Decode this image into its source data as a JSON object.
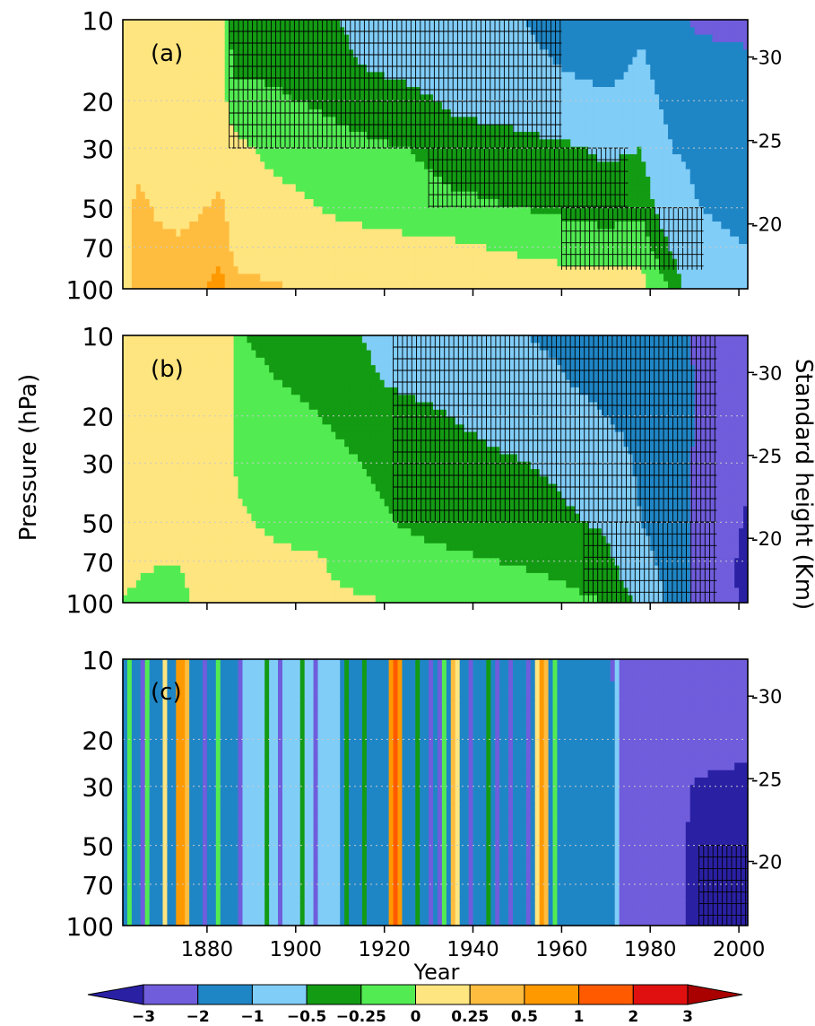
{
  "figure": {
    "xlabel": "Year",
    "ylabel_left": "Pressure (hPa)",
    "ylabel_right": "Standard height (Km)"
  },
  "chart_data": {
    "type": "heatmap",
    "x_range": [
      1861,
      2002
    ],
    "x_ticks": [
      1880,
      1900,
      1920,
      1940,
      1960,
      1980,
      2000
    ],
    "pressure_ticks": [
      10,
      20,
      30,
      50,
      70,
      100
    ],
    "height_ticks": [
      30,
      25,
      20
    ],
    "gridlines_dotted": true,
    "colorbar": {
      "tick_labels": [
        "-3",
        "-2",
        "-1",
        "-0.5",
        "-0.25",
        "0",
        "0.25",
        "0.5",
        "1",
        "2",
        "3"
      ],
      "colors": [
        "#2a20a4",
        "#6f5ddc",
        "#1f86c6",
        "#80cdf8",
        "#139b13",
        "#52ec52",
        "#ffe57f",
        "#ffbd40",
        "#ff9900",
        "#ff5a00",
        "#e01010",
        "#a90000"
      ],
      "extend": "both"
    },
    "panels": [
      {
        "label": "(a)",
        "profile": [
          {
            "year": 1861,
            "v": [
              0.1,
              0.1,
              0.1,
              0.1,
              0.1,
              0.1,
              0.1
            ]
          },
          {
            "year": 1864,
            "v": [
              0.1,
              0.12,
              0.15,
              0.2,
              0.3,
              0.3,
              0.3
            ]
          },
          {
            "year": 1874,
            "v": [
              0.1,
              0.1,
              0.05,
              0.05,
              0.15,
              0.3,
              0.35
            ]
          },
          {
            "year": 1883,
            "v": [
              0.1,
              0.1,
              0.1,
              0.1,
              0.3,
              0.45,
              0.6
            ]
          },
          {
            "year": 1886,
            "v": [
              -0.35,
              -0.3,
              -0.1,
              0.05,
              0.1,
              0.2,
              0.3
            ]
          },
          {
            "year": 1900,
            "v": [
              -0.4,
              -0.35,
              -0.25,
              -0.1,
              0.05,
              0.15,
              0.25
            ]
          },
          {
            "year": 1910,
            "v": [
              -0.5,
              -0.45,
              -0.3,
              -0.2,
              -0.05,
              0.1,
              0.25
            ]
          },
          {
            "year": 1925,
            "v": [
              -0.7,
              -0.6,
              -0.4,
              -0.25,
              -0.1,
              0.05,
              0.2
            ]
          },
          {
            "year": 1935,
            "v": [
              -0.8,
              -0.7,
              -0.55,
              -0.35,
              -0.2,
              0.05,
              0.2
            ]
          },
          {
            "year": 1950,
            "v": [
              -0.95,
              -0.85,
              -0.65,
              -0.4,
              -0.25,
              -0.05,
              0.2
            ]
          },
          {
            "year": 1960,
            "v": [
              -1.2,
              -1.0,
              -0.75,
              -0.45,
              -0.3,
              -0.1,
              0.15
            ]
          },
          {
            "year": 1970,
            "v": [
              -1.4,
              -1.2,
              -0.9,
              -0.55,
              -0.35,
              -0.15,
              0.15
            ]
          },
          {
            "year": 1978,
            "v": [
              -1.1,
              -0.9,
              -0.7,
              -0.5,
              -0.3,
              -0.1,
              0.1
            ]
          },
          {
            "year": 1985,
            "v": [
              -1.6,
              -1.4,
              -1.2,
              -1.0,
              -0.8,
              -0.55,
              -0.3
            ]
          },
          {
            "year": 1991,
            "v": [
              -2.2,
              -1.6,
              -1.3,
              -1.1,
              -1.0,
              -0.9,
              -0.8
            ]
          },
          {
            "year": 2002,
            "v": [
              -2.4,
              -1.7,
              -1.4,
              -1.2,
              -1.1,
              -1.0,
              -0.9
            ]
          }
        ],
        "hatch": [
          {
            "x": [
              1885,
              1960
            ],
            "p": [
              10,
              30
            ]
          },
          {
            "x": [
              1930,
              1975
            ],
            "p": [
              30,
              50
            ]
          },
          {
            "x": [
              1960,
              1992
            ],
            "p": [
              50,
              85
            ]
          }
        ]
      },
      {
        "label": "(b)",
        "profile": [
          {
            "year": 1861,
            "v": [
              0.15,
              0.15,
              0.12,
              0.1,
              0.05,
              0.02,
              0.0
            ]
          },
          {
            "year": 1872,
            "v": [
              0.1,
              0.1,
              0.08,
              0.05,
              0.02,
              0.0,
              -0.05
            ]
          },
          {
            "year": 1884,
            "v": [
              0.15,
              0.15,
              0.1,
              0.05,
              0.05,
              0.05,
              0.1
            ]
          },
          {
            "year": 1888,
            "v": [
              -0.25,
              -0.2,
              -0.1,
              -0.05,
              0.02,
              0.05,
              0.05
            ]
          },
          {
            "year": 1905,
            "v": [
              -0.35,
              -0.3,
              -0.25,
              -0.15,
              -0.1,
              0.02,
              0.03
            ]
          },
          {
            "year": 1915,
            "v": [
              -0.5,
              -0.45,
              -0.35,
              -0.25,
              -0.2,
              -0.1,
              0.03
            ]
          },
          {
            "year": 1930,
            "v": [
              -0.7,
              -0.6,
              -0.45,
              -0.35,
              -0.3,
              -0.2,
              -0.05
            ]
          },
          {
            "year": 1945,
            "v": [
              -0.9,
              -0.75,
              -0.6,
              -0.45,
              -0.35,
              -0.25,
              -0.1
            ]
          },
          {
            "year": 1960,
            "v": [
              -1.1,
              -0.95,
              -0.75,
              -0.55,
              -0.45,
              -0.3,
              -0.2
            ]
          },
          {
            "year": 1970,
            "v": [
              -1.4,
              -1.2,
              -1.0,
              -0.7,
              -0.55,
              -0.4,
              -0.25
            ]
          },
          {
            "year": 1976,
            "v": [
              -1.5,
              -1.3,
              -1.15,
              -1.0,
              -0.9,
              -0.7,
              -0.5
            ]
          },
          {
            "year": 1985,
            "v": [
              -1.8,
              -1.6,
              -1.5,
              -1.4,
              -1.3,
              -1.2,
              -1.1
            ]
          },
          {
            "year": 1990,
            "v": [
              -2.1,
              -2.0,
              -2.0,
              -2.1,
              -2.2,
              -2.3,
              -2.2
            ]
          },
          {
            "year": 2002,
            "v": [
              -2.3,
              -2.2,
              -2.4,
              -2.8,
              -3.1,
              -3.2,
              -3.2
            ]
          }
        ],
        "hatch": [
          {
            "x": [
              1922,
              1995
            ],
            "p": [
              10,
              50
            ]
          },
          {
            "x": [
              1965,
              1995
            ],
            "p": [
              50,
              100
            ]
          }
        ]
      },
      {
        "label": "(c)",
        "profile": [
          {
            "year": 1861,
            "v": [
              -1.2,
              -1.2,
              -1.2,
              -1.2,
              -1.2,
              -1.2,
              -1.2
            ]
          },
          {
            "year": 1900,
            "v": [
              -0.9,
              -0.9,
              -0.9,
              -0.9,
              -0.9,
              -0.9,
              -0.9
            ]
          },
          {
            "year": 1930,
            "v": [
              -1.2,
              -1.2,
              -1.2,
              -1.2,
              -1.2,
              -1.2,
              -1.2
            ]
          },
          {
            "year": 1960,
            "v": [
              -1.5,
              -1.5,
              -1.5,
              -1.5,
              -1.5,
              -1.5,
              -1.5
            ]
          },
          {
            "year": 1975,
            "v": [
              -2.2,
              -2.1,
              -2.1,
              -2.1,
              -2.1,
              -2.1,
              -2.1
            ]
          },
          {
            "year": 1985,
            "v": [
              -2.3,
              -2.2,
              -2.2,
              -2.4,
              -2.5,
              -2.6,
              -2.6
            ]
          },
          {
            "year": 1990,
            "v": [
              -2.5,
              -2.4,
              -2.6,
              -3.1,
              -3.3,
              -3.4,
              -3.4
            ]
          },
          {
            "year": 2002,
            "v": [
              -2.6,
              -2.5,
              -2.8,
              -3.2,
              -3.4,
              -3.5,
              -3.5
            ]
          }
        ],
        "events": [
          {
            "year": 1863,
            "v": -0.2
          },
          {
            "year": 1867,
            "v": -0.15
          },
          {
            "year": 1871,
            "v": 0.1
          },
          {
            "year": 1874,
            "v": 0.6
          },
          {
            "year": 1875,
            "v": 0.9
          },
          {
            "year": 1876,
            "v": 0.3
          },
          {
            "year": 1883,
            "v": -0.1
          },
          {
            "year": 1894,
            "v": -0.4
          },
          {
            "year": 1902,
            "v": -0.4
          },
          {
            "year": 1912,
            "v": -0.3
          },
          {
            "year": 1916,
            "v": -0.45
          },
          {
            "year": 1922,
            "v": 0.6
          },
          {
            "year": 1923,
            "v": 1.2
          },
          {
            "year": 1924,
            "v": 0.5
          },
          {
            "year": 1928,
            "v": -0.3
          },
          {
            "year": 1934,
            "v": -0.2
          },
          {
            "year": 1936,
            "v": 0.3
          },
          {
            "year": 1937,
            "v": 0.15
          },
          {
            "year": 1944,
            "v": -0.3
          },
          {
            "year": 1955,
            "v": 0.2
          },
          {
            "year": 1956,
            "v": 0.7
          },
          {
            "year": 1957,
            "v": 0.3
          },
          {
            "year": 1959,
            "v": -0.2
          },
          {
            "year": 1963,
            "v": -1.6
          },
          {
            "year": 1973,
            "v": -0.8
          }
        ],
        "cold_events": [
          1866,
          1880,
          1888,
          1897,
          1905,
          1931,
          1933,
          1940,
          1946,
          1949,
          1953
        ],
        "hatch": [
          {
            "x": [
              1991,
              2002
            ],
            "p": [
              50,
              100
            ]
          }
        ]
      }
    ]
  }
}
